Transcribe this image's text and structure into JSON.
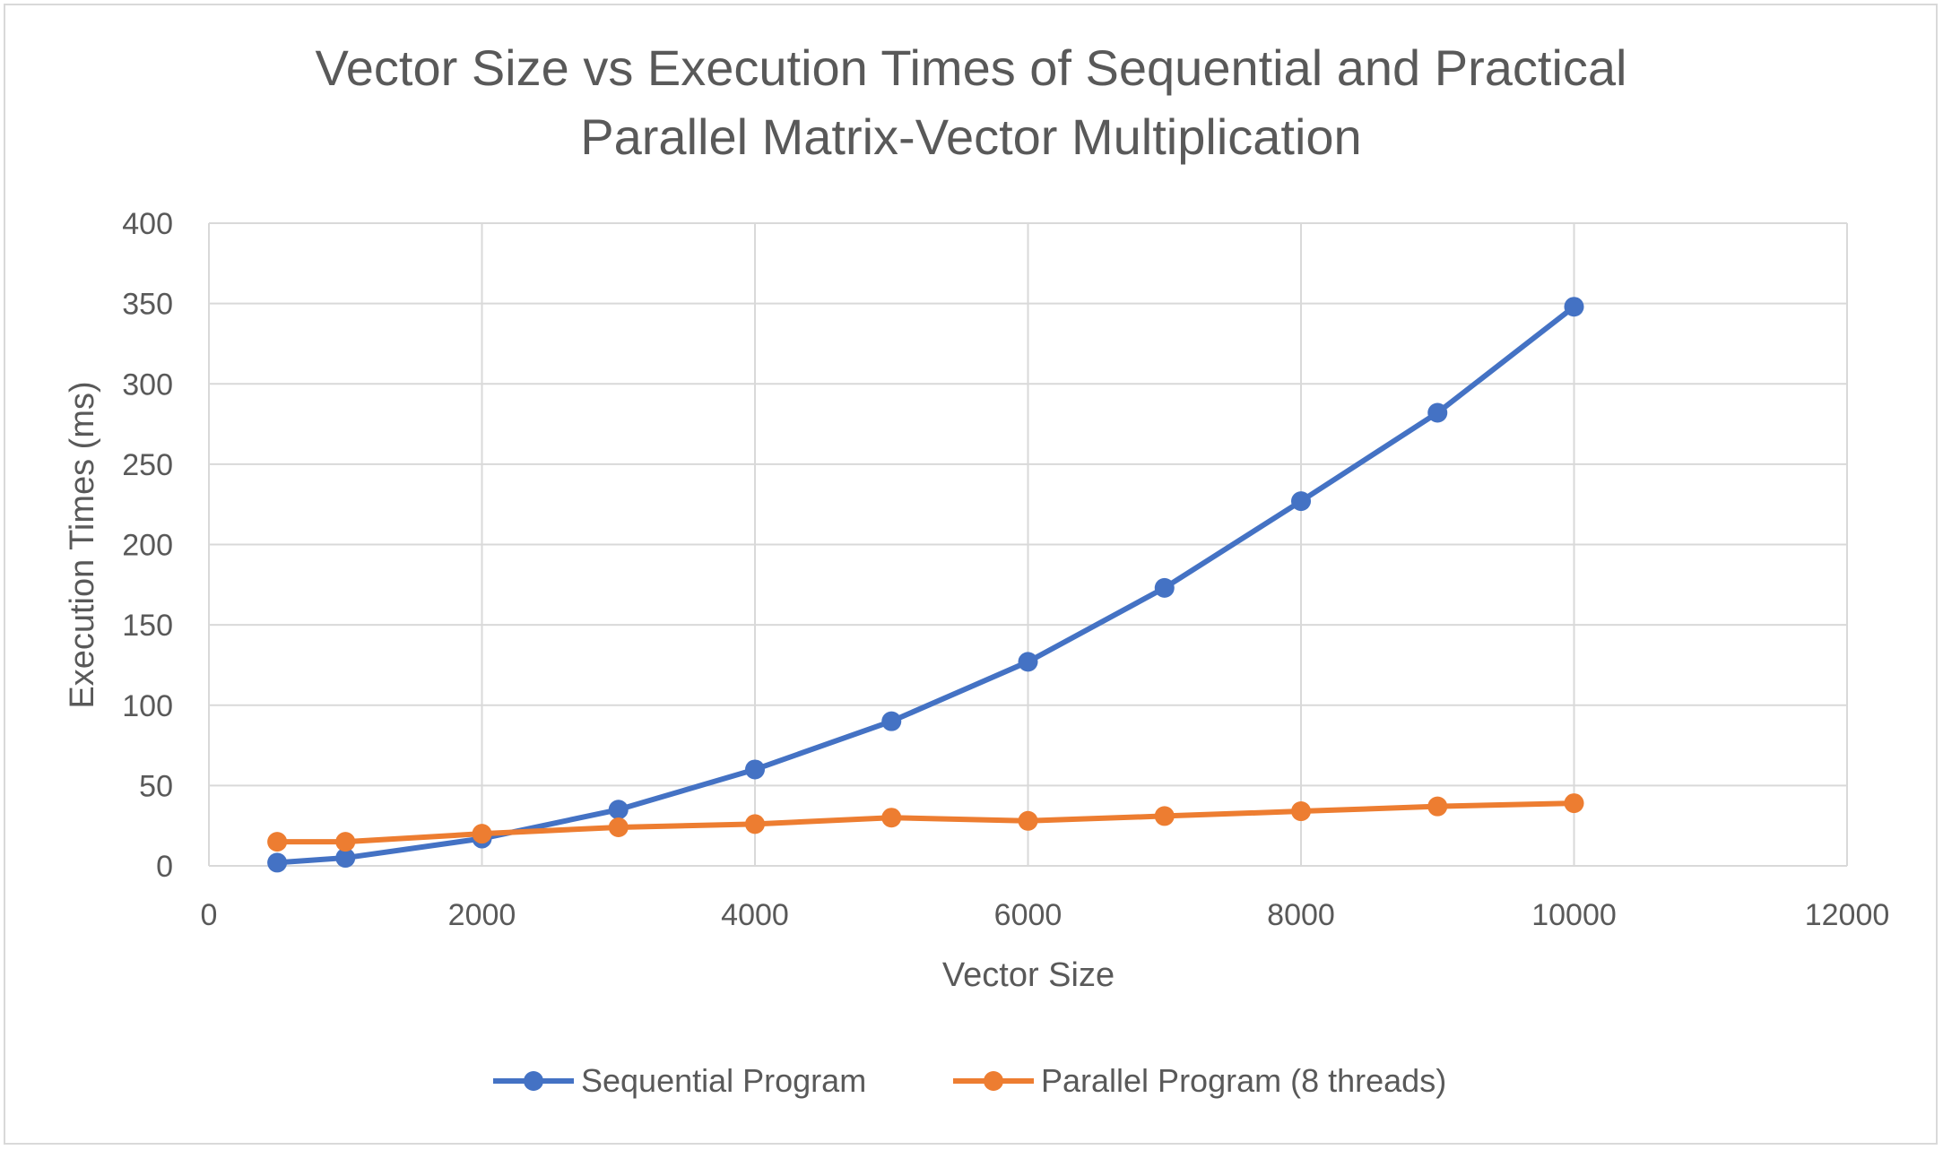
{
  "chart_data": {
    "type": "scatter",
    "title_lines": [
      "Vector Size vs Execution Times of Sequential and Practical",
      "Parallel Matrix-Vector Multiplication"
    ],
    "xlabel": "Vector Size",
    "ylabel": "Execution Times (ms)",
    "xlim": [
      0,
      12000
    ],
    "ylim": [
      0,
      400
    ],
    "x_ticks": [
      0,
      2000,
      4000,
      6000,
      8000,
      10000,
      12000
    ],
    "y_ticks": [
      0,
      50,
      100,
      150,
      200,
      250,
      300,
      350,
      400
    ],
    "grid": true,
    "legend_position": "bottom",
    "series": [
      {
        "name": "Sequential Program",
        "color": "#4472c4",
        "x": [
          500,
          1000,
          2000,
          3000,
          4000,
          5000,
          6000,
          7000,
          8000,
          9000,
          10000
        ],
        "y": [
          2,
          5,
          17,
          35,
          60,
          90,
          127,
          173,
          227,
          282,
          348
        ]
      },
      {
        "name": "Parallel Program (8 threads)",
        "color": "#ed7d31",
        "x": [
          500,
          1000,
          2000,
          3000,
          4000,
          5000,
          6000,
          7000,
          8000,
          9000,
          10000
        ],
        "y": [
          15,
          15,
          20,
          24,
          26,
          30,
          28,
          31,
          34,
          37,
          39
        ]
      }
    ]
  }
}
